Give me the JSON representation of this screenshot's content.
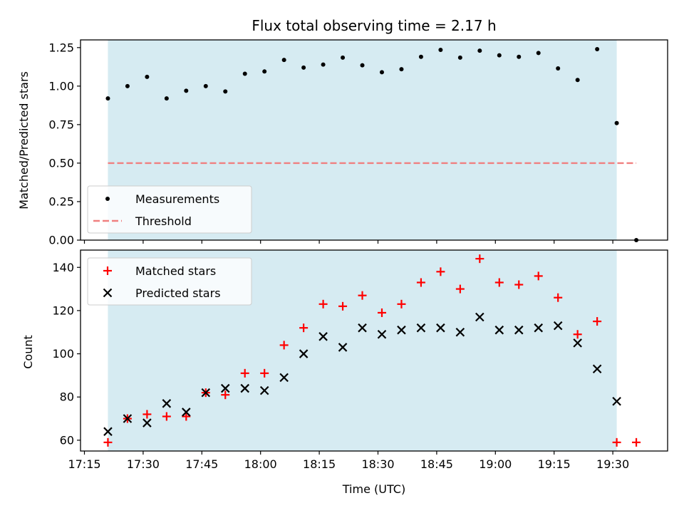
{
  "chart_data": {
    "type": "scatter",
    "title": "Flux total observing time = 2.17 h",
    "xlabel": "Time (UTC)",
    "x_ticks": [
      "17:15",
      "17:30",
      "17:45",
      "18:00",
      "18:15",
      "18:30",
      "18:45",
      "19:00",
      "19:15",
      "19:30"
    ],
    "xlim": [
      "17:14",
      "19:44"
    ],
    "shaded_span": [
      "17:21",
      "19:31"
    ],
    "shade_color": "#add8e6",
    "panels": [
      {
        "ylabel": "Matched/Predicted stars",
        "ylim": [
          0.0,
          1.3
        ],
        "yticks": [
          "0.00",
          "0.25",
          "0.50",
          "0.75",
          "1.00",
          "1.25"
        ],
        "legend_position": "lower-left",
        "series": [
          {
            "name": "Measurements",
            "marker": "dot",
            "color": "#000000",
            "x": [
              "17:21",
              "17:26",
              "17:31",
              "17:36",
              "17:41",
              "17:46",
              "17:51",
              "17:56",
              "18:01",
              "18:06",
              "18:11",
              "18:16",
              "18:21",
              "18:26",
              "18:31",
              "18:36",
              "18:41",
              "18:46",
              "18:51",
              "18:56",
              "19:01",
              "19:06",
              "19:11",
              "19:16",
              "19:21",
              "19:26",
              "19:31",
              "19:36"
            ],
            "y": [
              0.92,
              1.0,
              1.06,
              0.92,
              0.97,
              1.0,
              0.965,
              1.08,
              1.095,
              1.17,
              1.12,
              1.14,
              1.185,
              1.135,
              1.09,
              1.11,
              1.19,
              1.235,
              1.185,
              1.23,
              1.2,
              1.19,
              1.215,
              1.115,
              1.04,
              1.24,
              0.76,
              0.0
            ]
          },
          {
            "name": "Threshold",
            "marker": "dashed-line",
            "color": "#f08080",
            "x": [
              "17:21",
              "19:36"
            ],
            "y": [
              0.5,
              0.5
            ]
          }
        ]
      },
      {
        "ylabel": "Count",
        "ylim": [
          55,
          148
        ],
        "yticks": [
          "60",
          "80",
          "100",
          "120",
          "140"
        ],
        "legend_position": "top-left",
        "series": [
          {
            "name": "Matched stars",
            "marker": "plus",
            "color": "#ff0000",
            "x": [
              "17:21",
              "17:26",
              "17:31",
              "17:36",
              "17:41",
              "17:46",
              "17:51",
              "17:56",
              "18:01",
              "18:06",
              "18:11",
              "18:16",
              "18:21",
              "18:26",
              "18:31",
              "18:36",
              "18:41",
              "18:46",
              "18:51",
              "18:56",
              "19:01",
              "19:06",
              "19:11",
              "19:16",
              "19:21",
              "19:26",
              "19:31",
              "19:36"
            ],
            "y": [
              59,
              70,
              72,
              71,
              71,
              82,
              81,
              91,
              91,
              104,
              112,
              123,
              122,
              127,
              119,
              123,
              133,
              138,
              130,
              144,
              133,
              132,
              136,
              126,
              109,
              115,
              59,
              59
            ]
          },
          {
            "name": "Predicted stars",
            "marker": "x",
            "color": "#000000",
            "x": [
              "17:21",
              "17:26",
              "17:31",
              "17:36",
              "17:41",
              "17:46",
              "17:51",
              "17:56",
              "18:01",
              "18:06",
              "18:11",
              "18:16",
              "18:21",
              "18:26",
              "18:31",
              "18:36",
              "18:41",
              "18:46",
              "18:51",
              "18:56",
              "19:01",
              "19:06",
              "19:11",
              "19:16",
              "19:21",
              "19:26",
              "19:31"
            ],
            "y": [
              64,
              70,
              68,
              77,
              73,
              82,
              84,
              84,
              83,
              89,
              100,
              108,
              103,
              112,
              109,
              111,
              112,
              112,
              110,
              117,
              111,
              111,
              112,
              113,
              105,
              93,
              78
            ]
          }
        ]
      }
    ]
  }
}
